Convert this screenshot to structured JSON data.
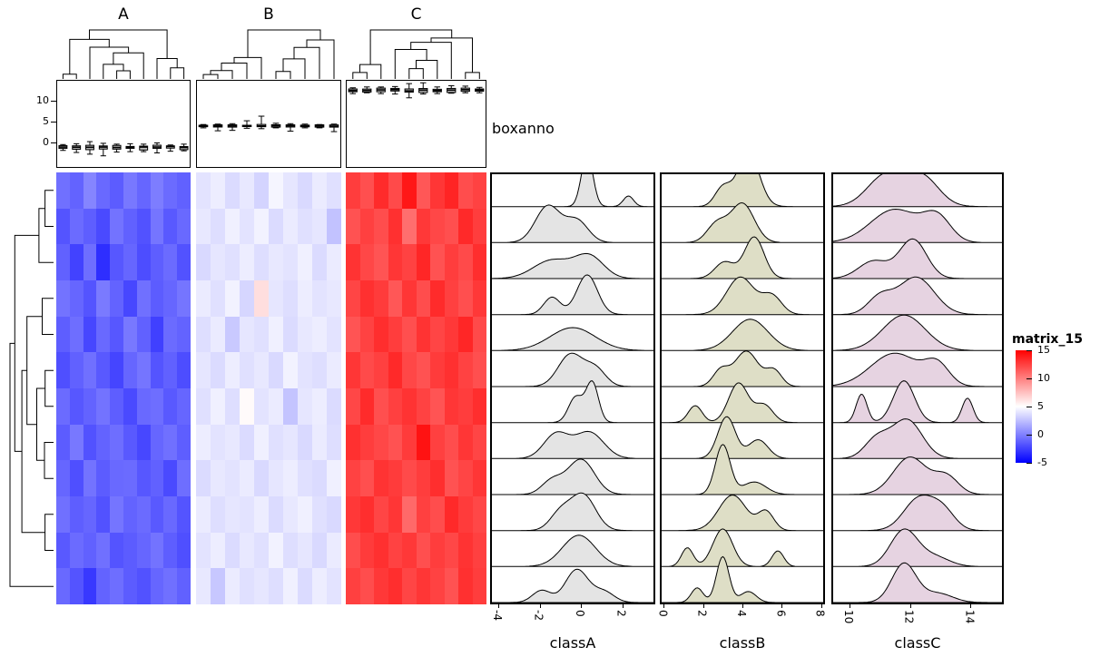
{
  "legend": {
    "title": "matrix_15",
    "ticks": [
      15,
      10,
      5,
      0,
      -5
    ]
  },
  "chart_data": {
    "type": "heatmap",
    "title": "matrix_15",
    "rows": 12,
    "color_scale": {
      "domain": [
        -5,
        5,
        15
      ],
      "colors": [
        "#0000FF",
        "#FFFFFF",
        "#FF0000"
      ],
      "legend_ticks": [
        15,
        10,
        5,
        0,
        -5
      ]
    },
    "column_blocks": [
      {
        "name": "A",
        "ncol": 10,
        "values": [
          [
            -0.6,
            -1.1,
            0.2,
            -0.9,
            -1.4,
            -0.3,
            -1.0,
            -0.1,
            -0.8,
            -1.2
          ],
          [
            -1.7,
            -0.8,
            -1.3,
            -2.1,
            -0.5,
            -1.2,
            -1.8,
            -0.4,
            -1.5,
            -0.9
          ],
          [
            -1.2,
            -2.4,
            -0.7,
            -3.2,
            -1.6,
            -1.0,
            -2.0,
            -1.3,
            -0.8,
            -1.8
          ],
          [
            -0.5,
            -1.0,
            -1.7,
            -0.2,
            -1.1,
            -2.2,
            -0.6,
            -1.4,
            -1.0,
            -0.4
          ],
          [
            -1.3,
            -0.7,
            -2.2,
            -0.9,
            -1.6,
            -0.3,
            -1.2,
            -2.5,
            -0.8,
            -1.1
          ],
          [
            -1.9,
            -1.2,
            -0.6,
            -1.5,
            -2.3,
            -1.0,
            -0.4,
            -1.7,
            -1.2,
            -2.0
          ],
          [
            -0.8,
            -1.6,
            -1.1,
            -0.5,
            -1.3,
            -2.1,
            -0.9,
            -0.7,
            -1.5,
            -1.0
          ],
          [
            -1.4,
            -0.3,
            -1.8,
            -1.1,
            -0.7,
            -1.5,
            -2.2,
            -1.0,
            -0.6,
            -1.3
          ],
          [
            -1.0,
            -1.9,
            -0.5,
            -1.4,
            -0.9,
            -0.8,
            -1.6,
            -1.2,
            -2.1,
            -0.7
          ],
          [
            -0.6,
            -1.3,
            -1.0,
            -1.8,
            -0.4,
            -1.1,
            -0.8,
            -1.5,
            -0.9,
            -1.7
          ],
          [
            -1.5,
            -0.8,
            -1.2,
            -0.6,
            -1.7,
            -1.4,
            -1.0,
            -0.5,
            -1.3,
            -1.9
          ],
          [
            -0.9,
            -1.7,
            -2.8,
            -1.1,
            -0.7,
            -1.4,
            -1.8,
            -1.0,
            -0.6,
            -1.2
          ]
        ]
      },
      {
        "name": "B",
        "ncol": 10,
        "values": [
          [
            3.9,
            4.3,
            3.6,
            4.1,
            3.3,
            4.6,
            4.0,
            3.5,
            4.2,
            3.8
          ],
          [
            4.1,
            3.7,
            4.4,
            3.9,
            4.5,
            3.6,
            4.2,
            3.8,
            4.0,
            2.6
          ],
          [
            3.5,
            4.0,
            3.8,
            4.3,
            3.7,
            4.1,
            3.9,
            4.4,
            3.6,
            4.2
          ],
          [
            4.2,
            3.8,
            4.5,
            3.4,
            6.3,
            4.0,
            3.7,
            4.3,
            3.9,
            4.1
          ],
          [
            3.7,
            4.2,
            2.9,
            4.0,
            3.8,
            4.4,
            3.6,
            4.1,
            4.3,
            3.9
          ],
          [
            4.0,
            3.6,
            4.3,
            3.8,
            4.1,
            3.5,
            4.5,
            3.9,
            3.7,
            4.2
          ],
          [
            3.8,
            4.4,
            3.7,
            5.2,
            3.9,
            4.2,
            2.7,
            4.0,
            4.3,
            3.6
          ],
          [
            4.3,
            3.9,
            4.1,
            3.6,
            4.4,
            3.8,
            4.0,
            3.5,
            4.2,
            3.7
          ],
          [
            3.6,
            4.1,
            3.9,
            4.2,
            3.5,
            4.0,
            4.3,
            3.8,
            3.6,
            4.4
          ],
          [
            4.2,
            3.7,
            4.0,
            3.9,
            4.3,
            3.6,
            4.1,
            4.4,
            3.8,
            3.5
          ],
          [
            3.9,
            4.3,
            3.6,
            4.1,
            3.8,
            4.5,
            3.7,
            4.0,
            3.5,
            4.2
          ],
          [
            4.1,
            2.8,
            4.2,
            3.8,
            4.0,
            3.7,
            4.4,
            3.6,
            4.3,
            3.9
          ]
        ]
      },
      {
        "name": "C",
        "ncol": 10,
        "values": [
          [
            12.6,
            11.9,
            13.3,
            12.1,
            14.1,
            11.6,
            12.9,
            13.6,
            12.0,
            12.4
          ],
          [
            11.8,
            12.5,
            12.0,
            13.1,
            10.7,
            12.8,
            12.2,
            11.9,
            13.4,
            12.6
          ],
          [
            13.0,
            12.2,
            11.7,
            12.9,
            12.4,
            13.5,
            11.8,
            12.6,
            12.1,
            13.2
          ],
          [
            12.3,
            13.1,
            12.7,
            11.6,
            12.9,
            12.0,
            13.3,
            12.5,
            11.9,
            12.8
          ],
          [
            11.7,
            12.4,
            13.2,
            12.6,
            11.9,
            13.0,
            12.3,
            12.8,
            13.5,
            12.1
          ],
          [
            12.9,
            12.1,
            12.5,
            13.4,
            12.2,
            11.8,
            12.7,
            13.1,
            12.4,
            11.9
          ],
          [
            12.2,
            13.3,
            11.9,
            12.5,
            13.0,
            12.4,
            11.7,
            12.9,
            12.6,
            13.2
          ],
          [
            13.1,
            12.6,
            12.2,
            11.8,
            12.7,
            14.3,
            12.5,
            12.0,
            12.9,
            12.3
          ],
          [
            12.4,
            11.9,
            13.0,
            12.7,
            12.1,
            12.6,
            13.2,
            11.8,
            12.3,
            12.9
          ],
          [
            12.8,
            13.2,
            12.3,
            12.9,
            10.9,
            12.5,
            12.0,
            13.4,
            12.7,
            12.2
          ],
          [
            12.0,
            12.7,
            13.1,
            12.4,
            12.8,
            11.9,
            12.6,
            12.2,
            13.0,
            12.5
          ],
          [
            12.5,
            12.0,
            12.8,
            13.2,
            12.3,
            12.9,
            12.4,
            11.8,
            13.1,
            12.6
          ]
        ]
      }
    ],
    "boxplot_annotation": {
      "label": "boxanno",
      "axis_ticks": [
        0,
        5,
        10
      ],
      "source": "per-column distribution of each heatmap block"
    },
    "ridge_panels": [
      {
        "label": "classA",
        "x_ticks": [
          -4,
          -2,
          0,
          2
        ],
        "xlim": [
          -4.4,
          3.6
        ],
        "fill": "#E4E4E4",
        "densities": [
          {
            "c": [
              [
                0.3,
                0.28,
                1
              ],
              [
                2.3,
                0.25,
                0.18
              ]
            ],
            "a": 1.25
          },
          {
            "c": [
              [
                -1.6,
                0.6,
                1
              ],
              [
                -0.2,
                0.55,
                0.55
              ]
            ],
            "a": 0.9
          },
          {
            "c": [
              [
                -1.4,
                0.9,
                0.8
              ],
              [
                0.4,
                0.7,
                0.75
              ]
            ],
            "a": 0.6
          },
          {
            "c": [
              [
                0.3,
                0.5,
                1
              ],
              [
                -1.4,
                0.4,
                0.35
              ]
            ],
            "a": 0.95
          },
          {
            "c": [
              [
                -0.4,
                1.1,
                1
              ]
            ],
            "a": 0.55
          },
          {
            "c": [
              [
                -0.5,
                0.6,
                1
              ],
              [
                0.7,
                0.5,
                0.45
              ]
            ],
            "a": 0.8
          },
          {
            "c": [
              [
                -0.25,
                0.35,
                0.75
              ],
              [
                0.55,
                0.3,
                1
              ]
            ],
            "a": 1.0
          },
          {
            "c": [
              [
                -1.2,
                0.6,
                0.8
              ],
              [
                0.4,
                0.7,
                1
              ]
            ],
            "a": 0.65
          },
          {
            "c": [
              [
                0.0,
                0.65,
                1
              ],
              [
                -1.4,
                0.5,
                0.3
              ]
            ],
            "a": 0.85
          },
          {
            "c": [
              [
                0.1,
                0.6,
                1
              ],
              [
                -1.0,
                0.5,
                0.4
              ]
            ],
            "a": 0.9
          },
          {
            "c": [
              [
                -0.1,
                0.8,
                1
              ]
            ],
            "a": 0.75
          },
          {
            "c": [
              [
                -0.2,
                0.55,
                1
              ],
              [
                -1.9,
                0.45,
                0.3
              ],
              [
                1.1,
                0.5,
                0.3
              ]
            ],
            "a": 0.8
          }
        ]
      },
      {
        "label": "classB",
        "x_ticks": [
          0,
          2,
          4,
          6,
          8
        ],
        "xlim": [
          -0.2,
          8.2
        ],
        "fill": "#DEDEC6",
        "densities": [
          {
            "c": [
              [
                4.3,
                0.55,
                1
              ],
              [
                3.0,
                0.4,
                0.25
              ]
            ],
            "a": 1.3
          },
          {
            "c": [
              [
                4.0,
                0.6,
                1
              ],
              [
                2.7,
                0.5,
                0.4
              ]
            ],
            "a": 0.95
          },
          {
            "c": [
              [
                4.6,
                0.5,
                1
              ],
              [
                3.1,
                0.5,
                0.4
              ]
            ],
            "a": 1.0
          },
          {
            "c": [
              [
                3.9,
                0.7,
                1
              ],
              [
                5.5,
                0.5,
                0.35
              ]
            ],
            "a": 0.9
          },
          {
            "c": [
              [
                4.4,
                0.9,
                1
              ]
            ],
            "a": 0.75
          },
          {
            "c": [
              [
                4.2,
                0.6,
                1
              ],
              [
                2.9,
                0.4,
                0.3
              ],
              [
                5.6,
                0.4,
                0.3
              ]
            ],
            "a": 0.85
          },
          {
            "c": [
              [
                3.8,
                0.5,
                1
              ],
              [
                1.6,
                0.35,
                0.3
              ],
              [
                5.1,
                0.45,
                0.4
              ]
            ],
            "a": 0.95
          },
          {
            "c": [
              [
                3.2,
                0.45,
                1
              ],
              [
                4.8,
                0.5,
                0.5
              ]
            ],
            "a": 1.0
          },
          {
            "c": [
              [
                3.0,
                0.38,
                1
              ],
              [
                4.6,
                0.6,
                0.4
              ]
            ],
            "a": 1.2
          },
          {
            "c": [
              [
                3.5,
                0.7,
                1
              ],
              [
                5.2,
                0.4,
                0.3
              ]
            ],
            "a": 0.85
          },
          {
            "c": [
              [
                3.0,
                0.5,
                1
              ],
              [
                1.2,
                0.3,
                0.3
              ],
              [
                5.8,
                0.3,
                0.25
              ]
            ],
            "a": 0.9
          },
          {
            "c": [
              [
                3.0,
                0.32,
                1
              ],
              [
                1.7,
                0.3,
                0.3
              ],
              [
                4.3,
                0.4,
                0.3
              ]
            ],
            "a": 1.1
          }
        ]
      },
      {
        "label": "classC",
        "x_ticks": [
          10,
          12,
          14
        ],
        "xlim": [
          9.4,
          15.1
        ],
        "fill": "#E6D3E1",
        "densities": [
          {
            "c": [
              [
                11.2,
                0.6,
                1
              ],
              [
                12.4,
                0.55,
                0.85
              ]
            ],
            "a": 0.85
          },
          {
            "c": [
              [
                11.5,
                0.8,
                1
              ],
              [
                12.9,
                0.45,
                0.4
              ]
            ],
            "a": 0.8
          },
          {
            "c": [
              [
                12.1,
                0.45,
                1
              ],
              [
                10.8,
                0.5,
                0.5
              ]
            ],
            "a": 0.95
          },
          {
            "c": [
              [
                12.2,
                0.6,
                1
              ],
              [
                11.0,
                0.4,
                0.3
              ]
            ],
            "a": 0.9
          },
          {
            "c": [
              [
                11.8,
                0.7,
                1
              ]
            ],
            "a": 0.85
          },
          {
            "c": [
              [
                11.5,
                0.8,
                1
              ],
              [
                12.9,
                0.4,
                0.3
              ]
            ],
            "a": 0.8
          },
          {
            "c": [
              [
                11.8,
                0.35,
                1
              ],
              [
                10.4,
                0.18,
                0.35
              ],
              [
                13.9,
                0.18,
                0.3
              ]
            ],
            "a": 1.0
          },
          {
            "c": [
              [
                11.9,
                0.5,
                1
              ],
              [
                10.9,
                0.4,
                0.4
              ]
            ],
            "a": 0.95
          },
          {
            "c": [
              [
                12.0,
                0.55,
                1
              ],
              [
                13.2,
                0.4,
                0.35
              ]
            ],
            "a": 0.9
          },
          {
            "c": [
              [
                12.3,
                0.5,
                1
              ],
              [
                13.1,
                0.4,
                0.45
              ]
            ],
            "a": 0.85
          },
          {
            "c": [
              [
                11.8,
                0.45,
                1
              ],
              [
                12.8,
                0.5,
                0.3
              ]
            ],
            "a": 0.9
          },
          {
            "c": [
              [
                11.8,
                0.4,
                1
              ],
              [
                12.9,
                0.5,
                0.3
              ]
            ],
            "a": 0.95
          }
        ]
      }
    ]
  }
}
